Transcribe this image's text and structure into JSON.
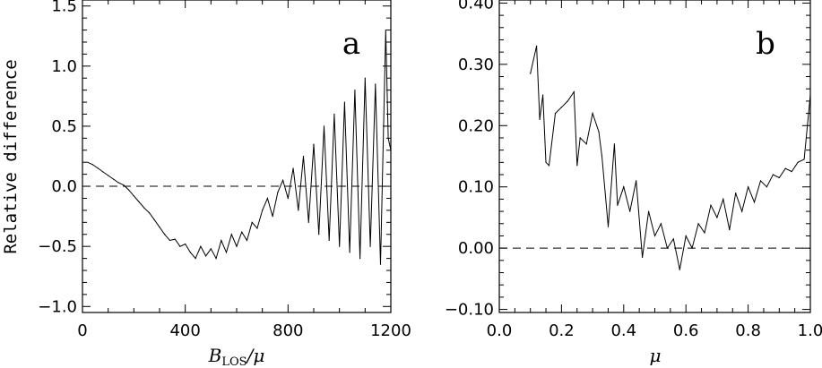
{
  "chart_data": [
    {
      "type": "line",
      "panel_label": "a",
      "ylabel": "Relative difference",
      "xlabel_main": "B",
      "xlabel_sub": "LOS",
      "xlabel_rest": "/μ",
      "xlim": [
        0,
        1200
      ],
      "ylim": [
        -1.05,
        1.55
      ],
      "x_ticks": [
        0,
        400,
        800,
        1200
      ],
      "x_tick_labels": [
        "0",
        "400",
        "800",
        "1200"
      ],
      "y_ticks": [
        -1.0,
        -0.5,
        0.0,
        0.5,
        1.0,
        1.5
      ],
      "y_tick_labels": [
        "−1.0",
        "−0.5",
        "0.0",
        "0.5",
        "1.0",
        "1.5"
      ],
      "reference_line": 0,
      "grid": false,
      "series": [
        {
          "x": [
            20,
            40,
            60,
            80,
            100,
            120,
            140,
            160,
            180,
            200,
            220,
            240,
            260,
            280,
            300,
            320,
            340,
            360,
            380,
            400,
            420,
            440,
            460,
            480,
            500,
            520,
            540,
            560,
            580,
            600,
            620,
            640,
            660,
            680,
            700,
            720,
            740,
            760,
            780,
            800,
            820,
            840,
            860,
            880,
            900,
            920,
            940,
            960,
            980,
            1000,
            1020,
            1040,
            1060,
            1080,
            1100,
            1120,
            1140,
            1160,
            1180,
            1190,
            1200
          ],
          "y": [
            0.2,
            0.18,
            0.15,
            0.12,
            0.09,
            0.06,
            0.03,
            0.01,
            -0.03,
            -0.08,
            -0.13,
            -0.18,
            -0.22,
            -0.28,
            -0.34,
            -0.4,
            -0.45,
            -0.44,
            -0.5,
            -0.48,
            -0.55,
            -0.6,
            -0.5,
            -0.58,
            -0.52,
            -0.6,
            -0.45,
            -0.55,
            -0.4,
            -0.5,
            -0.38,
            -0.45,
            -0.3,
            -0.35,
            -0.2,
            -0.1,
            -0.25,
            -0.05,
            0.05,
            -0.1,
            0.15,
            -0.2,
            0.25,
            -0.3,
            0.35,
            -0.4,
            0.5,
            -0.45,
            0.6,
            -0.5,
            0.7,
            -0.55,
            0.8,
            -0.6,
            0.9,
            -0.5,
            0.85,
            -0.65,
            1.3,
            0.4,
            0.3
          ]
        }
      ]
    },
    {
      "type": "line",
      "panel_label": "b",
      "xlabel": "μ",
      "xlim": [
        0.0,
        1.0
      ],
      "ylim": [
        -0.105,
        0.405
      ],
      "x_ticks": [
        0.0,
        0.2,
        0.4,
        0.6,
        0.8,
        1.0
      ],
      "x_tick_labels": [
        "0.0",
        "0.2",
        "0.4",
        "0.6",
        "0.8",
        "1.0"
      ],
      "y_ticks": [
        -0.1,
        0.0,
        0.1,
        0.2,
        0.3,
        0.4
      ],
      "y_tick_labels": [
        "−0.10",
        "0.00",
        "0.10",
        "0.20",
        "0.30",
        "0.40"
      ],
      "reference_line": 0,
      "grid": false,
      "series": [
        {
          "x": [
            0.1,
            0.12,
            0.13,
            0.14,
            0.15,
            0.16,
            0.18,
            0.2,
            0.22,
            0.24,
            0.25,
            0.26,
            0.28,
            0.3,
            0.32,
            0.33,
            0.35,
            0.37,
            0.38,
            0.4,
            0.42,
            0.44,
            0.46,
            0.48,
            0.5,
            0.52,
            0.54,
            0.56,
            0.58,
            0.6,
            0.62,
            0.64,
            0.66,
            0.68,
            0.7,
            0.72,
            0.74,
            0.76,
            0.78,
            0.8,
            0.82,
            0.84,
            0.86,
            0.88,
            0.9,
            0.92,
            0.94,
            0.96,
            0.98,
            1.0
          ],
          "y": [
            0.285,
            0.33,
            0.21,
            0.25,
            0.14,
            0.135,
            0.22,
            0.23,
            0.24,
            0.255,
            0.135,
            0.18,
            0.17,
            0.22,
            0.19,
            0.15,
            0.035,
            0.17,
            0.07,
            0.1,
            0.06,
            0.11,
            -0.015,
            0.06,
            0.02,
            0.04,
            0.0,
            0.015,
            -0.035,
            0.02,
            0.0,
            0.04,
            0.025,
            0.07,
            0.05,
            0.08,
            0.03,
            0.09,
            0.06,
            0.1,
            0.075,
            0.11,
            0.1,
            0.12,
            0.115,
            0.13,
            0.125,
            0.14,
            0.145,
            0.25
          ]
        }
      ]
    }
  ]
}
